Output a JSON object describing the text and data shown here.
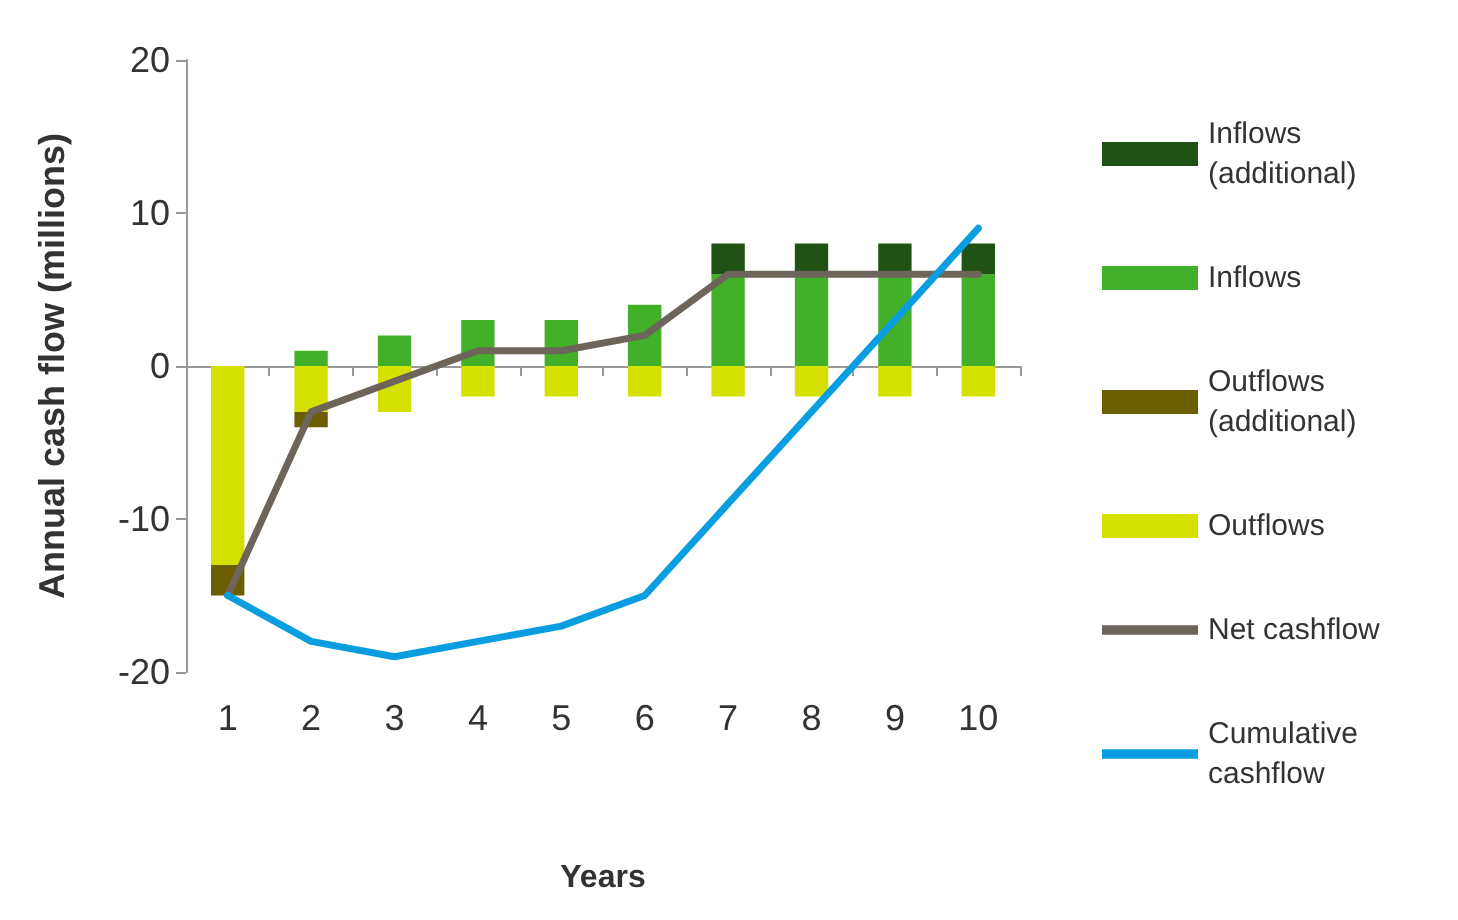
{
  "chart_data": {
    "type": "bar",
    "stacked": true,
    "xlabel": "Years",
    "ylabel": "Annual cash flow (millions)",
    "categories": [
      "1",
      "2",
      "3",
      "4",
      "5",
      "6",
      "7",
      "8",
      "9",
      "10"
    ],
    "series": [
      {
        "name": "Inflows",
        "color": "#43b02a",
        "values": [
          0,
          1,
          2,
          3,
          3,
          4,
          6,
          6,
          6,
          6
        ]
      },
      {
        "name": "Inflows (additional)",
        "color": "#1f5214",
        "values": [
          0,
          0,
          0,
          0,
          0,
          0,
          2,
          2,
          2,
          2
        ]
      },
      {
        "name": "Outflows",
        "color": "#d4e000",
        "values": [
          -13,
          -3,
          -3,
          -2,
          -2,
          -2,
          -2,
          -2,
          -2,
          -2
        ]
      },
      {
        "name": "Outflows (additional)",
        "color": "#6b5e00",
        "values": [
          -2,
          -1,
          0,
          0,
          0,
          0,
          0,
          0,
          0,
          0
        ]
      },
      {
        "name": "Net cashflow",
        "type": "line",
        "color": "#6e655a",
        "values": [
          -15,
          -3,
          -1,
          1,
          1,
          2,
          6,
          6,
          6,
          6
        ]
      },
      {
        "name": "Cumulative cashflow",
        "type": "line",
        "color": "#0a9ee0",
        "values": [
          -15,
          -18,
          -19,
          -18,
          -17,
          -15,
          -9,
          -3,
          3,
          9
        ]
      }
    ],
    "ylim": [
      -20,
      20
    ],
    "yticks": [
      -20,
      -10,
      0,
      10,
      20
    ],
    "legend": "right",
    "marker": "none"
  }
}
